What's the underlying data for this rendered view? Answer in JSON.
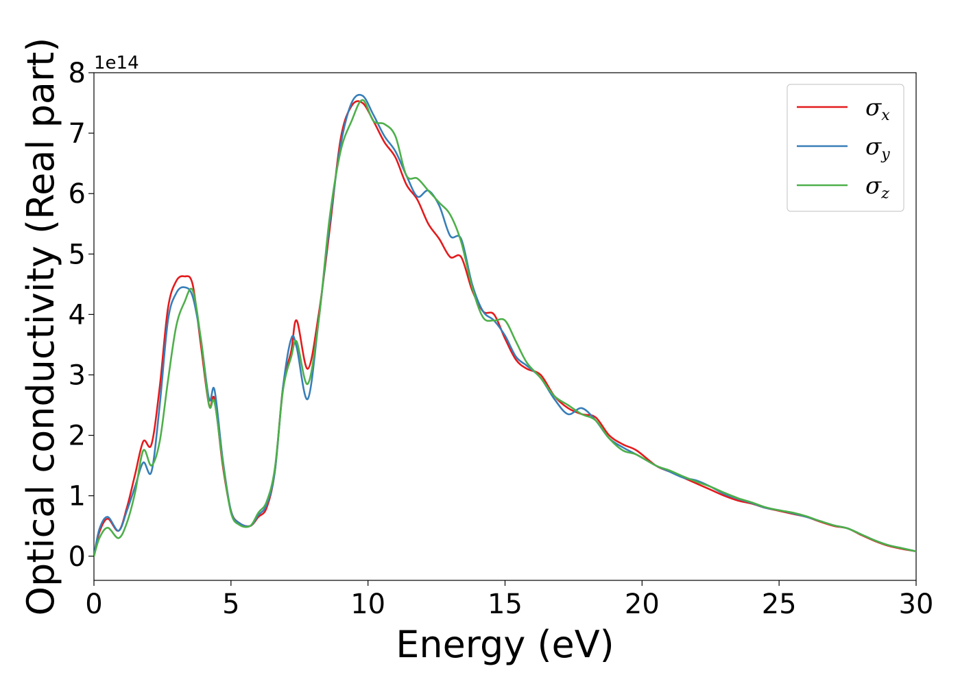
{
  "chart_data": {
    "type": "line",
    "title": "",
    "xlabel": "Energy (eV)",
    "ylabel": "Optical conductivity (Real part)",
    "y_offset_label": "1e14",
    "xlim": [
      0,
      30
    ],
    "ylim": [
      -0.4,
      8.0
    ],
    "xticks": [
      0,
      5,
      10,
      15,
      20,
      25,
      30
    ],
    "yticks": [
      0,
      1,
      2,
      3,
      4,
      5,
      6,
      7,
      8
    ],
    "grid": false,
    "legend_position": "top-right",
    "series": [
      {
        "name": "σx",
        "legend_symbol": "σ",
        "legend_sub": "x",
        "color": "#e41a1c",
        "x": [
          0,
          0.2,
          0.5,
          0.9,
          1.2,
          1.5,
          1.8,
          2.1,
          2.4,
          2.7,
          3.0,
          3.3,
          3.6,
          3.9,
          4.2,
          4.4,
          4.7,
          5.0,
          5.3,
          5.7,
          6.0,
          6.3,
          6.6,
          6.9,
          7.2,
          7.4,
          7.8,
          8.2,
          8.6,
          9.0,
          9.4,
          9.8,
          10.2,
          10.6,
          11.0,
          11.4,
          11.8,
          12.2,
          12.6,
          13.0,
          13.4,
          13.8,
          14.2,
          14.6,
          15.0,
          15.4,
          15.8,
          16.3,
          16.8,
          17.3,
          17.8,
          18.3,
          18.8,
          19.3,
          19.8,
          20.5,
          21.0,
          21.5,
          22.0,
          22.5,
          23.0,
          23.5,
          24.0,
          24.5,
          25.0,
          25.5,
          26.0,
          26.5,
          27.0,
          27.5,
          28.0,
          28.5,
          29.0,
          29.5,
          30.0
        ],
        "y": [
          0,
          0.4,
          0.62,
          0.42,
          0.8,
          1.35,
          1.9,
          1.85,
          2.8,
          4.1,
          4.55,
          4.63,
          4.5,
          3.5,
          2.5,
          2.6,
          1.5,
          0.75,
          0.55,
          0.5,
          0.65,
          0.8,
          1.4,
          2.8,
          3.4,
          3.9,
          3.1,
          4.0,
          5.4,
          6.9,
          7.45,
          7.5,
          7.2,
          6.85,
          6.6,
          6.15,
          5.9,
          5.5,
          5.25,
          4.95,
          4.95,
          4.4,
          4.05,
          4.0,
          3.6,
          3.25,
          3.1,
          3.0,
          2.65,
          2.45,
          2.35,
          2.3,
          2.0,
          1.85,
          1.75,
          1.5,
          1.4,
          1.3,
          1.2,
          1.1,
          1.0,
          0.92,
          0.87,
          0.8,
          0.75,
          0.7,
          0.65,
          0.57,
          0.5,
          0.46,
          0.35,
          0.25,
          0.17,
          0.12,
          0.08
        ]
      },
      {
        "name": "σy",
        "legend_symbol": "σ",
        "legend_sub": "y",
        "color": "#377eb8",
        "x": [
          0,
          0.2,
          0.5,
          0.9,
          1.2,
          1.5,
          1.8,
          2.1,
          2.4,
          2.7,
          3.0,
          3.3,
          3.6,
          3.9,
          4.2,
          4.4,
          4.7,
          5.0,
          5.3,
          5.7,
          6.0,
          6.3,
          6.6,
          6.9,
          7.2,
          7.4,
          7.8,
          8.2,
          8.6,
          9.0,
          9.4,
          9.8,
          10.2,
          10.6,
          11.0,
          11.4,
          11.8,
          12.2,
          12.6,
          13.0,
          13.4,
          13.8,
          14.2,
          14.6,
          15.0,
          15.4,
          15.8,
          16.3,
          16.8,
          17.3,
          17.8,
          18.3,
          18.8,
          19.3,
          19.8,
          20.5,
          21.0,
          21.5,
          22.0,
          22.5,
          23.0,
          23.5,
          24.0,
          24.5,
          25.0,
          25.5,
          26.0,
          26.5,
          27.0,
          27.5,
          28.0,
          28.5,
          29.0,
          29.5,
          30.0
        ],
        "y": [
          0,
          0.45,
          0.65,
          0.42,
          0.75,
          1.15,
          1.55,
          1.4,
          2.5,
          3.9,
          4.35,
          4.45,
          4.3,
          3.6,
          2.6,
          2.75,
          1.6,
          0.75,
          0.55,
          0.5,
          0.68,
          0.85,
          1.4,
          2.8,
          3.6,
          3.45,
          2.6,
          3.9,
          5.5,
          6.8,
          7.5,
          7.62,
          7.3,
          6.95,
          6.7,
          6.3,
          5.95,
          6.05,
          5.8,
          5.3,
          5.25,
          4.5,
          4.05,
          3.9,
          3.65,
          3.3,
          3.15,
          2.95,
          2.6,
          2.35,
          2.45,
          2.25,
          1.95,
          1.8,
          1.68,
          1.5,
          1.4,
          1.3,
          1.25,
          1.15,
          1.03,
          0.95,
          0.88,
          0.8,
          0.76,
          0.71,
          0.65,
          0.58,
          0.51,
          0.46,
          0.36,
          0.26,
          0.18,
          0.13,
          0.08
        ]
      },
      {
        "name": "σz",
        "legend_symbol": "σ",
        "legend_sub": "z",
        "color": "#4daf4a",
        "x": [
          0,
          0.2,
          0.5,
          0.9,
          1.2,
          1.5,
          1.8,
          2.1,
          2.4,
          2.7,
          3.0,
          3.3,
          3.6,
          3.9,
          4.2,
          4.4,
          4.7,
          5.0,
          5.3,
          5.7,
          6.0,
          6.3,
          6.6,
          6.9,
          7.2,
          7.4,
          7.8,
          8.2,
          8.6,
          9.0,
          9.4,
          9.8,
          10.2,
          10.6,
          11.0,
          11.4,
          11.8,
          12.2,
          12.6,
          13.0,
          13.4,
          13.8,
          14.2,
          14.6,
          15.0,
          15.4,
          15.8,
          16.3,
          16.8,
          17.3,
          17.8,
          18.3,
          18.8,
          19.3,
          19.8,
          20.5,
          21.0,
          21.5,
          22.0,
          22.5,
          23.0,
          23.5,
          24.0,
          24.5,
          25.0,
          25.5,
          26.0,
          26.5,
          27.0,
          27.5,
          28.0,
          28.5,
          29.0,
          29.5,
          30.0
        ],
        "y": [
          0,
          0.3,
          0.47,
          0.3,
          0.55,
          1.05,
          1.75,
          1.5,
          1.9,
          2.9,
          3.8,
          4.2,
          4.4,
          3.6,
          2.5,
          2.55,
          1.55,
          0.72,
          0.52,
          0.5,
          0.72,
          0.9,
          1.45,
          2.75,
          3.3,
          3.55,
          2.85,
          3.9,
          5.6,
          6.7,
          7.2,
          7.55,
          7.2,
          7.15,
          6.95,
          6.3,
          6.25,
          6.05,
          5.85,
          5.65,
          5.2,
          4.45,
          3.95,
          3.9,
          3.9,
          3.55,
          3.2,
          2.95,
          2.65,
          2.5,
          2.35,
          2.25,
          1.95,
          1.75,
          1.68,
          1.5,
          1.42,
          1.32,
          1.23,
          1.15,
          1.05,
          0.96,
          0.89,
          0.81,
          0.76,
          0.72,
          0.66,
          0.58,
          0.51,
          0.46,
          0.36,
          0.26,
          0.18,
          0.13,
          0.08
        ]
      }
    ]
  }
}
